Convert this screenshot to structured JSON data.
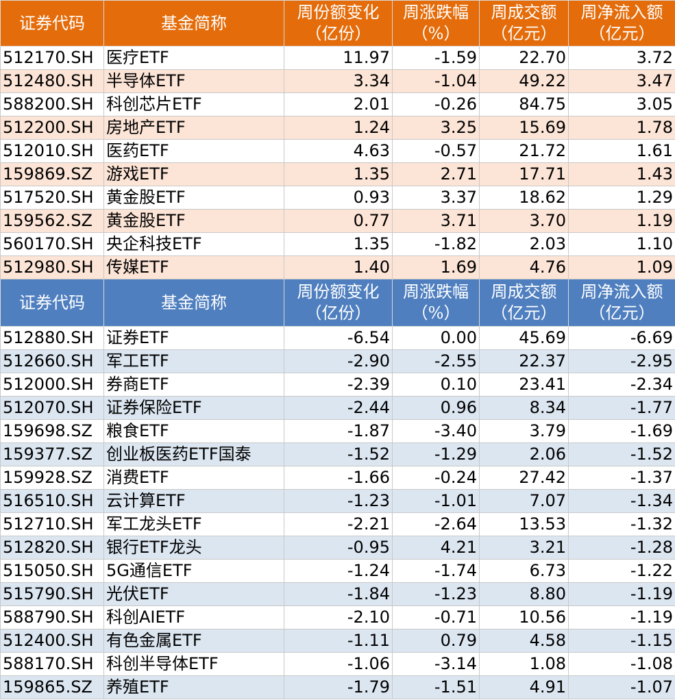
{
  "inflow_header": {
    "code": "证券代码",
    "name": "基金简称",
    "share_change_1": "周份额变化",
    "share_change_2": "（亿份）",
    "pct_change_1": "周涨跌幅",
    "pct_change_2": "（%）",
    "turnover_1": "周成交额",
    "turnover_2": "（亿元）",
    "net_flow_1": "周净流入额",
    "net_flow_2": "（亿元）"
  },
  "inflow_rows": [
    {
      "code": "512170.SH",
      "name": "医疗ETF",
      "share_change": "11.97",
      "pct_change": "-1.59",
      "turnover": "22.70",
      "net_flow": "3.72"
    },
    {
      "code": "512480.SH",
      "name": "半导体ETF",
      "share_change": "3.34",
      "pct_change": "-1.04",
      "turnover": "49.22",
      "net_flow": "3.47"
    },
    {
      "code": "588200.SH",
      "name": "科创芯片ETF",
      "share_change": "2.01",
      "pct_change": "-0.26",
      "turnover": "84.75",
      "net_flow": "3.05"
    },
    {
      "code": "512200.SH",
      "name": "房地产ETF",
      "share_change": "1.24",
      "pct_change": "3.25",
      "turnover": "15.69",
      "net_flow": "1.78"
    },
    {
      "code": "512010.SH",
      "name": "医药ETF",
      "share_change": "4.63",
      "pct_change": "-0.57",
      "turnover": "21.72",
      "net_flow": "1.61"
    },
    {
      "code": "159869.SZ",
      "name": "游戏ETF",
      "share_change": "1.35",
      "pct_change": "2.71",
      "turnover": "17.71",
      "net_flow": "1.43"
    },
    {
      "code": "517520.SH",
      "name": "黄金股ETF",
      "share_change": "0.93",
      "pct_change": "3.37",
      "turnover": "18.62",
      "net_flow": "1.29"
    },
    {
      "code": "159562.SZ",
      "name": "黄金股ETF",
      "share_change": "0.77",
      "pct_change": "3.71",
      "turnover": "3.70",
      "net_flow": "1.19"
    },
    {
      "code": "560170.SH",
      "name": "央企科技ETF",
      "share_change": "1.35",
      "pct_change": "-1.82",
      "turnover": "2.03",
      "net_flow": "1.10"
    },
    {
      "code": "512980.SH",
      "name": "传媒ETF",
      "share_change": "1.40",
      "pct_change": "1.69",
      "turnover": "4.76",
      "net_flow": "1.09"
    }
  ],
  "outflow_header": {
    "code": "证券代码",
    "name": "基金简称",
    "share_change_1": "周份额变化",
    "share_change_2": "（亿份）",
    "pct_change_1": "周涨跌幅",
    "pct_change_2": "（%）",
    "turnover_1": "周成交额",
    "turnover_2": "（亿元）",
    "net_flow_1": "周净流入额",
    "net_flow_2": "（亿元）"
  },
  "outflow_rows": [
    {
      "code": "512880.SH",
      "name": "证券ETF",
      "share_change": "-6.54",
      "pct_change": "0.00",
      "turnover": "45.69",
      "net_flow": "-6.69"
    },
    {
      "code": "512660.SH",
      "name": "军工ETF",
      "share_change": "-2.90",
      "pct_change": "-2.55",
      "turnover": "22.37",
      "net_flow": "-2.95"
    },
    {
      "code": "512000.SH",
      "name": "券商ETF",
      "share_change": "-2.39",
      "pct_change": "0.10",
      "turnover": "23.41",
      "net_flow": "-2.34"
    },
    {
      "code": "512070.SH",
      "name": "证券保险ETF",
      "share_change": "-2.44",
      "pct_change": "0.96",
      "turnover": "8.34",
      "net_flow": "-1.77"
    },
    {
      "code": "159698.SZ",
      "name": "粮食ETF",
      "share_change": "-1.87",
      "pct_change": "-3.40",
      "turnover": "3.79",
      "net_flow": "-1.69"
    },
    {
      "code": "159377.SZ",
      "name": "创业板医药ETF国泰",
      "share_change": "-1.52",
      "pct_change": "-1.29",
      "turnover": "2.06",
      "net_flow": "-1.52"
    },
    {
      "code": "159928.SZ",
      "name": "消费ETF",
      "share_change": "-1.66",
      "pct_change": "-0.24",
      "turnover": "27.42",
      "net_flow": "-1.37"
    },
    {
      "code": "516510.SH",
      "name": "云计算ETF",
      "share_change": "-1.23",
      "pct_change": "-1.01",
      "turnover": "7.07",
      "net_flow": "-1.34"
    },
    {
      "code": "512710.SH",
      "name": "军工龙头ETF",
      "share_change": "-2.21",
      "pct_change": "-2.64",
      "turnover": "13.53",
      "net_flow": "-1.32"
    },
    {
      "code": "512820.SH",
      "name": "银行ETF龙头",
      "share_change": "-0.95",
      "pct_change": "4.21",
      "turnover": "3.21",
      "net_flow": "-1.28"
    },
    {
      "code": "515050.SH",
      "name": "5G通信ETF",
      "share_change": "-1.24",
      "pct_change": "-1.74",
      "turnover": "6.73",
      "net_flow": "-1.22"
    },
    {
      "code": "515790.SH",
      "name": "光伏ETF",
      "share_change": "-1.84",
      "pct_change": "-1.23",
      "turnover": "8.80",
      "net_flow": "-1.19"
    },
    {
      "code": "588790.SH",
      "name": "科创AIETF",
      "share_change": "-2.10",
      "pct_change": "-0.71",
      "turnover": "10.56",
      "net_flow": "-1.19"
    },
    {
      "code": "512400.SH",
      "name": "有色金属ETF",
      "share_change": "-1.11",
      "pct_change": "0.79",
      "turnover": "4.58",
      "net_flow": "-1.15"
    },
    {
      "code": "588170.SH",
      "name": "科创半导体ETF",
      "share_change": "-1.06",
      "pct_change": "-3.14",
      "turnover": "1.08",
      "net_flow": "-1.08"
    },
    {
      "code": "159865.SZ",
      "name": "养殖ETF",
      "share_change": "-1.79",
      "pct_change": "-1.51",
      "turnover": "4.91",
      "net_flow": "-1.07"
    }
  ],
  "colors": {
    "inflow_header_bg": "#e46c0a",
    "inflow_stripe": "#fce4d6",
    "outflow_header_bg": "#4f7fbf",
    "outflow_stripe": "#dce6f1"
  }
}
